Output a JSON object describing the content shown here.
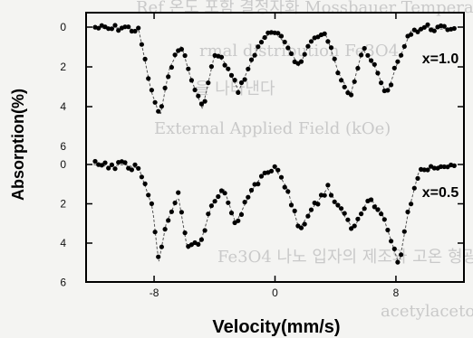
{
  "bleed_through": [
    "Ref 온도 포함 결정자화 Mossbauer Tempera",
    "rmal distribution Fe3O4 ",
    "을 나타낸다",
    "External Applied Field (kOe)",
    "Fe3O4 나노 입자의 제조와 고온 형광",
    "acetylacetonate 등 용매 내 나타난다"
  ],
  "chart_data": {
    "type": "scatter",
    "title": "",
    "xlabel": "Velocity(mm/s)",
    "ylabel": "Absorption(%)",
    "xlim": [
      -12.5,
      12.5
    ],
    "xticks": [
      -8,
      0,
      8
    ],
    "xtick_labels": [
      "-8",
      "0",
      "8"
    ],
    "panels": [
      {
        "name": "x=1.0",
        "label": "x=1.0",
        "ylim": [
          0,
          5.6
        ],
        "yticks": [
          0,
          2,
          4
        ],
        "ytick_labels": [
          "0",
          "2",
          "4"
        ],
        "points": [
          [
            -12,
            0
          ],
          [
            -11,
            0.1
          ],
          [
            -10,
            0
          ],
          [
            -9,
            0.2
          ],
          [
            -8.2,
            3.2
          ],
          [
            -7.6,
            4.5
          ],
          [
            -7,
            2.1
          ],
          [
            -6.2,
            0.9
          ],
          [
            -5.6,
            2.5
          ],
          [
            -4.8,
            4.1
          ],
          [
            -4,
            1.4
          ],
          [
            -3.4,
            1.7
          ],
          [
            -2.4,
            3.2
          ],
          [
            -1.6,
            1.8
          ],
          [
            -0.8,
            0.5
          ],
          [
            0,
            0.3
          ],
          [
            0.8,
            0.9
          ],
          [
            1.6,
            2.0
          ],
          [
            2.4,
            0.6
          ],
          [
            3.4,
            0.4
          ],
          [
            4.2,
            2.3
          ],
          [
            5,
            3.4
          ],
          [
            5.8,
            1.1
          ],
          [
            6.6,
            2.0
          ],
          [
            7.4,
            3.4
          ],
          [
            8,
            2.0
          ],
          [
            9,
            0.2
          ],
          [
            10,
            0
          ],
          [
            11,
            0.1
          ],
          [
            12,
            0
          ]
        ]
      },
      {
        "name": "x=0.5",
        "label": "x=0.5",
        "ylim": [
          0,
          5.9
        ],
        "yticks": [
          0,
          2,
          4
        ],
        "ytick_labels": [
          "0",
          "2",
          "4"
        ],
        "points": [
          [
            -12,
            0
          ],
          [
            -11,
            0.1
          ],
          [
            -10,
            0
          ],
          [
            -9,
            0.2
          ],
          [
            -8.1,
            2.2
          ],
          [
            -7.7,
            5.0
          ],
          [
            -7.2,
            3.0
          ],
          [
            -6.4,
            1.6
          ],
          [
            -5.8,
            4.3
          ],
          [
            -4.9,
            3.9
          ],
          [
            -4.2,
            2.1
          ],
          [
            -3.4,
            1.2
          ],
          [
            -2.6,
            3.0
          ],
          [
            -1.6,
            1.4
          ],
          [
            -0.8,
            0.5
          ],
          [
            0,
            0.2
          ],
          [
            0.8,
            1.2
          ],
          [
            1.6,
            3.3
          ],
          [
            2.5,
            2.2
          ],
          [
            3.5,
            1.2
          ],
          [
            4.3,
            2.3
          ],
          [
            5.2,
            3.3
          ],
          [
            6.2,
            1.7
          ],
          [
            7,
            2.3
          ],
          [
            7.7,
            3.9
          ],
          [
            8.2,
            5.1
          ],
          [
            8.8,
            2.5
          ],
          [
            9.5,
            0.4
          ],
          [
            10.5,
            0.1
          ],
          [
            12,
            0
          ]
        ]
      }
    ],
    "marker": "filled-circle",
    "fit_curve": "dashed/solid fit line",
    "grid": false,
    "colors": {
      "points": "#000000",
      "axes": "#000000",
      "fit": "#555555"
    }
  }
}
